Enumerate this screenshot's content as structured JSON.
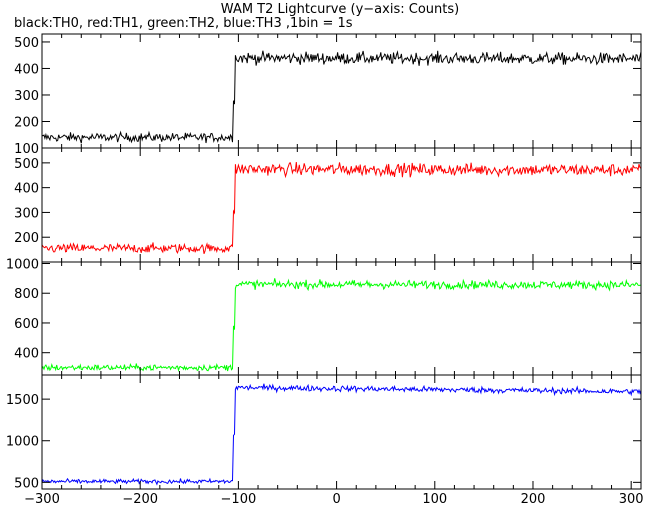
{
  "title": "WAM T2 Lightcurve (y−axis: Counts)",
  "subtitle": "black:TH0, red:TH1, green:TH2, blue:TH3 ,1bin = 1s",
  "chart_data": [
    {
      "type": "line",
      "series": [
        {
          "name": "TH0",
          "color": "#000000",
          "pre_level": 140,
          "post_level": 440,
          "noise": 16,
          "step_x": -105
        }
      ],
      "x_ticks": [
        "−300",
        "−200",
        "−100",
        "0",
        "100",
        "200",
        "300"
      ],
      "y_ticks": [
        "100",
        "200",
        "300",
        "400",
        "500"
      ],
      "y_tick_values": [
        100,
        200,
        300,
        400,
        500
      ],
      "xlim": [
        -300,
        310
      ],
      "ylim": [
        100,
        530
      ]
    },
    {
      "type": "line",
      "series": [
        {
          "name": "TH1",
          "color": "#ff0000",
          "pre_level": 155,
          "post_level": 475,
          "noise": 18,
          "step_x": -105
        }
      ],
      "y_ticks": [
        "200",
        "300",
        "400",
        "500"
      ],
      "y_tick_values": [
        200,
        300,
        400,
        500
      ],
      "xlim": [
        -300,
        310
      ],
      "ylim": [
        100,
        560
      ]
    },
    {
      "type": "line",
      "series": [
        {
          "name": "TH2",
          "color": "#00ff00",
          "pre_level": 300,
          "post_level": 860,
          "noise": 20,
          "step_x": -105
        }
      ],
      "y_ticks": [
        "400",
        "600",
        "800",
        "1000"
      ],
      "y_tick_values": [
        400,
        600,
        800,
        1000
      ],
      "xlim": [
        -300,
        310
      ],
      "ylim": [
        250,
        1010
      ]
    },
    {
      "type": "line",
      "series": [
        {
          "name": "TH3",
          "color": "#0000ff",
          "pre_level": 510,
          "post_level": 1640,
          "noise": 25,
          "step_x": -105
        }
      ],
      "y_ticks": [
        "500",
        "1000",
        "1500"
      ],
      "y_tick_values": [
        500,
        1000,
        1500
      ],
      "xlim": [
        -300,
        310
      ],
      "ylim": [
        420,
        1790
      ]
    }
  ]
}
